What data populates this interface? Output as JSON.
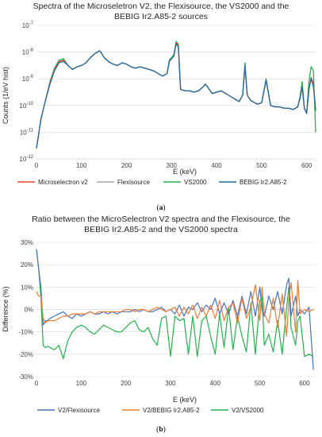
{
  "figure": {
    "caption_a": "a",
    "caption_b": "b"
  },
  "chart_data": [
    {
      "type": "line",
      "id": "a",
      "title_lines": [
        "Spectra of the Microseletron V2, the Flexisource, the VS2000 and the",
        "BEBIG Ir2.A85-2  sources"
      ],
      "xlabel": "E (keV)",
      "ylabel": "Counts (1/eV hist)",
      "xlim": [
        0,
        620
      ],
      "xticks": [
        0,
        100,
        200,
        300,
        400,
        500,
        600
      ],
      "ylog": true,
      "ylim_exp": [
        -12,
        -7
      ],
      "yticks_exp": [
        -12,
        -11,
        -10,
        -9,
        -8,
        -7
      ],
      "ytick_base": "10",
      "colors": {
        "Microselectron v2": "#e8452a",
        "Flexisource": "#a6a6a6",
        "VS2000": "#21b24b",
        "BEBIG Ir2.A85-2": "#1f6fa8"
      },
      "legend": [
        "Microselectron v2",
        "Flexisource",
        "VS2000",
        "BEBIG Ir2.A85-2"
      ],
      "x": [
        0,
        10,
        20,
        30,
        40,
        50,
        60,
        70,
        80,
        90,
        100,
        110,
        120,
        130,
        140,
        145,
        150,
        160,
        170,
        180,
        190,
        200,
        210,
        220,
        230,
        240,
        250,
        260,
        270,
        280,
        290,
        295,
        300,
        305,
        310,
        315,
        320,
        330,
        340,
        350,
        360,
        370,
        375,
        380,
        390,
        400,
        410,
        420,
        430,
        440,
        450,
        458,
        463,
        468,
        475,
        480,
        490,
        500,
        510,
        520,
        530,
        540,
        550,
        560,
        570,
        580,
        585,
        590,
        595,
        600,
        605,
        610,
        615,
        620
      ],
      "series": [
        {
          "name": "VS2000",
          "exp": [
            -11.6,
            -10.5,
            -9.8,
            -9.1,
            -8.6,
            -8.3,
            -8.25,
            -8.5,
            -8.65,
            -8.55,
            -8.5,
            -8.4,
            -8.2,
            -8.05,
            -7.95,
            -8.05,
            -8.2,
            -8.35,
            -8.45,
            -8.5,
            -8.4,
            -8.45,
            -8.55,
            -8.6,
            -8.55,
            -8.6,
            -8.65,
            -8.7,
            -8.8,
            -8.9,
            -8.8,
            -8.3,
            -8.2,
            -8.1,
            -7.6,
            -7.7,
            -9.4,
            -9.45,
            -9.45,
            -9.5,
            -9.45,
            -9.3,
            -9.2,
            -9.3,
            -9.55,
            -9.5,
            -9.45,
            -9.55,
            -9.65,
            -9.75,
            -9.85,
            -9.6,
            -8.4,
            -9.6,
            -9.8,
            -9.85,
            -9.95,
            -9.9,
            -9.0,
            -10.0,
            -10.05,
            -10.05,
            -10.1,
            -10.1,
            -10.15,
            -10.05,
            -9.7,
            -9.1,
            -10.1,
            -10.3,
            -9.1,
            -8.55,
            -8.7,
            -11.0
          ]
        },
        {
          "name": "Flexisource",
          "exp": [
            -11.6,
            -10.5,
            -9.8,
            -9.15,
            -8.65,
            -8.35,
            -8.3,
            -8.5,
            -8.65,
            -8.55,
            -8.5,
            -8.4,
            -8.2,
            -8.05,
            -7.95,
            -8.05,
            -8.2,
            -8.35,
            -8.45,
            -8.5,
            -8.4,
            -8.45,
            -8.55,
            -8.6,
            -8.55,
            -8.6,
            -8.65,
            -8.7,
            -8.8,
            -8.9,
            -8.8,
            -8.35,
            -8.25,
            -8.15,
            -7.65,
            -7.75,
            -9.4,
            -9.45,
            -9.45,
            -9.5,
            -9.45,
            -9.3,
            -9.2,
            -9.3,
            -9.55,
            -9.5,
            -9.45,
            -9.55,
            -9.65,
            -9.75,
            -9.85,
            -9.6,
            -8.5,
            -9.6,
            -9.8,
            -9.85,
            -9.95,
            -9.9,
            -9.05,
            -10.0,
            -10.05,
            -10.05,
            -10.1,
            -10.1,
            -10.15,
            -10.05,
            -9.75,
            -9.3,
            -10.1,
            -10.3,
            -9.4,
            -8.95,
            -9.2,
            -10.2
          ]
        },
        {
          "name": "Microselectron v2",
          "exp": [
            -11.6,
            -10.5,
            -9.8,
            -9.15,
            -8.65,
            -8.35,
            -8.3,
            -8.5,
            -8.65,
            -8.55,
            -8.5,
            -8.4,
            -8.2,
            -8.05,
            -7.95,
            -8.05,
            -8.2,
            -8.35,
            -8.45,
            -8.5,
            -8.4,
            -8.45,
            -8.55,
            -8.6,
            -8.55,
            -8.6,
            -8.65,
            -8.7,
            -8.8,
            -8.9,
            -8.8,
            -8.35,
            -8.25,
            -8.15,
            -7.65,
            -7.75,
            -9.4,
            -9.45,
            -9.45,
            -9.5,
            -9.45,
            -9.3,
            -9.2,
            -9.3,
            -9.55,
            -9.5,
            -9.45,
            -9.55,
            -9.65,
            -9.75,
            -9.85,
            -9.6,
            -8.5,
            -9.6,
            -9.8,
            -9.85,
            -9.95,
            -9.9,
            -9.05,
            -10.0,
            -10.05,
            -10.05,
            -10.1,
            -10.1,
            -10.15,
            -10.05,
            -9.75,
            -9.3,
            -10.1,
            -10.3,
            -9.4,
            -8.95,
            -9.2,
            -10.2
          ]
        },
        {
          "name": "BEBIG Ir2.A85-2",
          "exp": [
            -11.6,
            -10.5,
            -9.8,
            -9.2,
            -8.7,
            -8.4,
            -8.35,
            -8.5,
            -8.65,
            -8.55,
            -8.5,
            -8.4,
            -8.2,
            -8.05,
            -7.95,
            -8.05,
            -8.2,
            -8.35,
            -8.45,
            -8.5,
            -8.4,
            -8.45,
            -8.55,
            -8.6,
            -8.55,
            -8.6,
            -8.65,
            -8.7,
            -8.8,
            -8.9,
            -8.8,
            -8.35,
            -8.25,
            -8.15,
            -7.7,
            -7.8,
            -9.4,
            -9.45,
            -9.45,
            -9.5,
            -9.45,
            -9.3,
            -9.2,
            -9.3,
            -9.55,
            -9.5,
            -9.45,
            -9.55,
            -9.65,
            -9.75,
            -9.85,
            -9.6,
            -8.5,
            -9.6,
            -9.8,
            -9.85,
            -9.95,
            -9.9,
            -9.05,
            -10.0,
            -10.05,
            -10.05,
            -10.1,
            -10.1,
            -10.15,
            -10.05,
            -9.75,
            -9.3,
            -10.1,
            -10.3,
            -9.4,
            -9.0,
            -9.3,
            -10.2
          ]
        }
      ]
    },
    {
      "type": "line",
      "id": "b",
      "title_lines": [
        "Ratio between the MicroSelectron V2 spectra and the Flexisource, the",
        "BEBIG Ir2.A85-2 and the VS2000 spectra"
      ],
      "xlabel": "E (keV)",
      "ylabel": "Difference (%)",
      "xlim": [
        0,
        625
      ],
      "xticks": [
        0,
        100,
        200,
        300,
        400,
        500,
        600
      ],
      "ylim": [
        -30,
        30
      ],
      "yticks": [
        -30,
        -20,
        -10,
        0,
        10,
        20,
        30
      ],
      "ytick_suffix": "%",
      "colors": {
        "V2/Flexisource": "#4472c4",
        "V2/BEBIG Ir2.A85-2": "#ed7d31",
        "V2/VS2000": "#21b24b"
      },
      "legend": [
        "V2/Flexisource",
        "V2/BEBIG Ir2.A85-2",
        "V2/VS2000"
      ],
      "x": [
        0,
        5,
        10,
        15,
        20,
        25,
        30,
        40,
        50,
        60,
        70,
        80,
        90,
        100,
        110,
        120,
        130,
        140,
        150,
        160,
        170,
        180,
        190,
        200,
        210,
        220,
        230,
        240,
        250,
        260,
        270,
        280,
        290,
        300,
        310,
        320,
        330,
        340,
        350,
        360,
        370,
        380,
        390,
        400,
        410,
        420,
        430,
        440,
        450,
        460,
        470,
        480,
        490,
        500,
        505,
        510,
        520,
        530,
        540,
        550,
        560,
        565,
        570,
        580,
        585,
        590,
        600,
        610,
        620
      ],
      "series": [
        {
          "name": "V2/VS2000",
          "values": [
            27,
            18,
            5,
            -16,
            -17,
            -16.5,
            -17,
            -18,
            -16,
            -22,
            -14,
            -10,
            -8,
            -7,
            -8,
            -10,
            -11,
            -9,
            -7,
            -8,
            -9,
            -10,
            -10,
            -8,
            -6,
            -5,
            -9,
            -10,
            -8,
            -13,
            -16,
            -4,
            -3,
            -21,
            -3,
            -5,
            -4,
            -20,
            -3,
            -21,
            -5,
            -3,
            -12,
            -20,
            -2,
            -17,
            1,
            -18,
            -3,
            -12,
            -19,
            3,
            -20,
            4,
            6,
            -16,
            -11,
            -19,
            -5,
            -20,
            1,
            10,
            -8,
            -16,
            -5,
            -3,
            -21,
            -20,
            -21
          ]
        },
        {
          "name": "V2/Flexisource",
          "values": [
            27,
            18,
            10,
            -7,
            -5,
            -5,
            -4,
            -3,
            -2,
            -1,
            -3,
            -4,
            -2,
            -3,
            -2,
            -1,
            -2,
            -2,
            -1,
            -2,
            -1,
            -2,
            -1,
            -1,
            -1,
            0,
            -1,
            0,
            -1,
            -1,
            0,
            1,
            -1,
            0,
            -2,
            2,
            -3,
            1,
            0,
            3,
            -1,
            2,
            0,
            5,
            -2,
            3,
            -2,
            4,
            -3,
            6,
            -2,
            8,
            -3,
            10,
            0,
            -3,
            6,
            0,
            8,
            -2,
            11,
            14,
            -3,
            6,
            -3,
            0,
            -2,
            1,
            -27
          ]
        },
        {
          "name": "V2/BEBIG Ir2.A85-2",
          "values": [
            8,
            6,
            6,
            -4,
            -6,
            -5,
            -5,
            -5,
            -4,
            -3,
            -3,
            -2,
            -2,
            -2,
            -2,
            -1,
            -2,
            -1,
            -1,
            -1,
            -1,
            -1,
            -1,
            0,
            0,
            -1,
            0,
            0,
            -1,
            0,
            1,
            0,
            -1,
            0,
            1,
            -3,
            1,
            -2,
            2,
            -4,
            1,
            -3,
            2,
            -4,
            4,
            -5,
            1,
            3,
            -6,
            5,
            -4,
            1,
            11,
            -5,
            10,
            -2,
            -6,
            5,
            -8,
            7,
            -12,
            5,
            12,
            -10,
            13,
            -2,
            0,
            -1,
            0
          ]
        }
      ]
    }
  ]
}
